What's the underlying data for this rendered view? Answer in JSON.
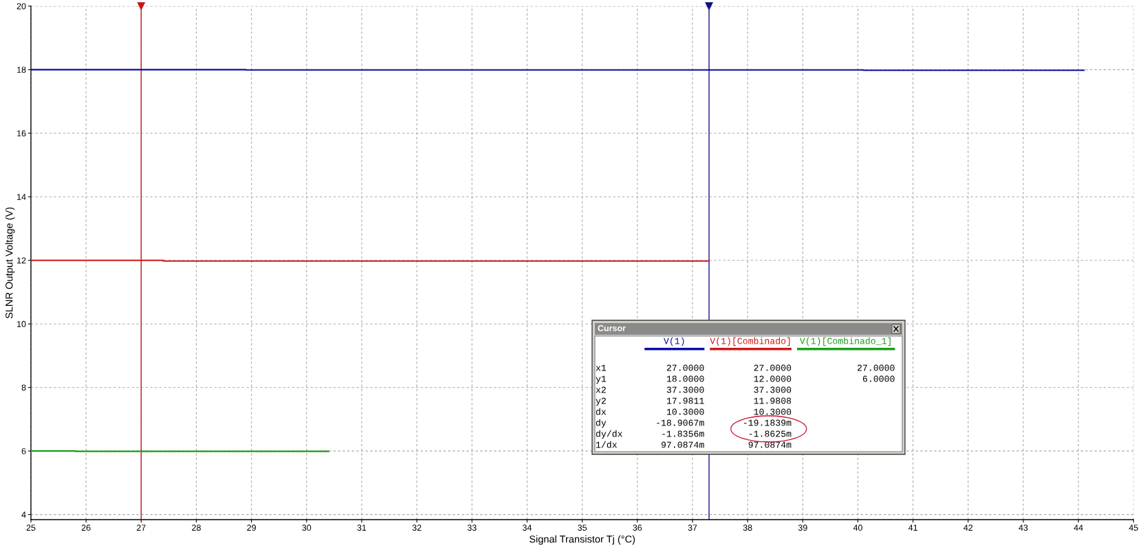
{
  "chart_data": {
    "type": "step",
    "xlabel": "Signal Transistor Tj (°C)",
    "ylabel": "SLNR Output Voltage (V)",
    "xlim": [
      25,
      45
    ],
    "xticks": [
      25,
      26,
      27,
      28,
      29,
      30,
      31,
      32,
      33,
      34,
      35,
      36,
      37,
      38,
      39,
      40,
      41,
      42,
      43,
      44,
      45
    ],
    "ylim": [
      3.84,
      20
    ],
    "yticks": [
      4,
      6,
      8,
      10,
      12,
      14,
      16,
      18,
      20
    ],
    "grid": true,
    "legend": "bottom right",
    "series": [
      {
        "name": "V(1)",
        "color": "#0c0ca0",
        "x": [
          25,
          28.9,
          40.1,
          44.1
        ],
        "values": [
          18.0,
          17.99,
          17.98,
          17.98
        ]
      },
      {
        "name": "V(1)[Combinado]",
        "color": "#d01818",
        "x": [
          25,
          27.4,
          37.3
        ],
        "values": [
          12.0,
          11.98,
          11.98
        ]
      },
      {
        "name": "V(1)[Combinado_1]",
        "color": "#1c9c1c",
        "x": [
          25,
          25.8,
          30.4
        ],
        "values": [
          6.0,
          5.99,
          5.99
        ]
      }
    ],
    "ref_lines": [
      {
        "axis": "x",
        "value": 27,
        "color": "#c81414"
      },
      {
        "axis": "x",
        "value": 37.3,
        "color": "#10108c"
      }
    ],
    "annotations": [
      "Cursor",
      "x1 27.0000 27.0000 27.0000",
      "y1 18.0000 12.0000 6.0000",
      "x2 37.3000 37.3000",
      "y2 17.9811 11.9808",
      "dx 10.3000 10.3000",
      "dy -18.9067m -19.1839m",
      "dy/dx -1.8356m -1.8625m",
      "1/dx 97.0874m 97.0874m"
    ]
  }
}
